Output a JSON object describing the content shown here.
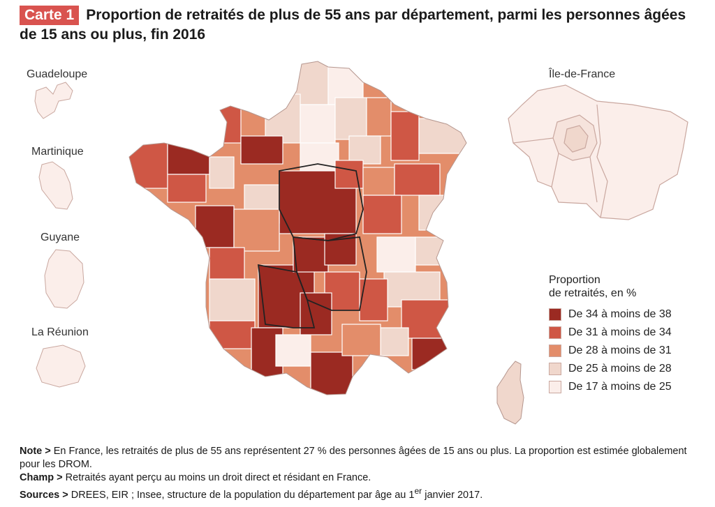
{
  "header": {
    "badge": "Carte 1",
    "title": "Proportion de retraités de plus de 55 ans par département, parmi les personnes âgées de 15 ans ou plus, fin 2016"
  },
  "drom": [
    {
      "id": "guadeloupe",
      "label": "Guadeloupe"
    },
    {
      "id": "martinique",
      "label": "Martinique"
    },
    {
      "id": "guyane",
      "label": "Guyane"
    },
    {
      "id": "reunion",
      "label": "La Réunion"
    }
  ],
  "idf_label": "Île-de-France",
  "legend": {
    "title_line1": "Proportion",
    "title_line2": "de retraités, en %",
    "classes": [
      {
        "label": "De 34 à moins de 38",
        "color": "#9b2a22"
      },
      {
        "label": "De 31 à moins de 34",
        "color": "#cf5745"
      },
      {
        "label": "De 28 à moins de 31",
        "color": "#e38d6a"
      },
      {
        "label": "De 25 à moins de 28",
        "color": "#f0d7cc"
      },
      {
        "label": "De 17 à moins de 25",
        "color": "#fbeeea"
      }
    ]
  },
  "notes": {
    "note_key": "Note >",
    "note_text": "En France, les retraités de plus de 55 ans représentent 27 % des personnes âgées de 15 ans ou plus. La proportion est estimée globalement pour les DROM.",
    "champ_key": "Champ >",
    "champ_text": "Retraités ayant perçu au moins un droit direct et résidant en France.",
    "sources_key": "Sources >",
    "sources_text": "DREES, EIR ; Insee, structure de la population du département par âge au 1",
    "sources_sup": "er",
    "sources_end": " janvier 2017."
  }
}
